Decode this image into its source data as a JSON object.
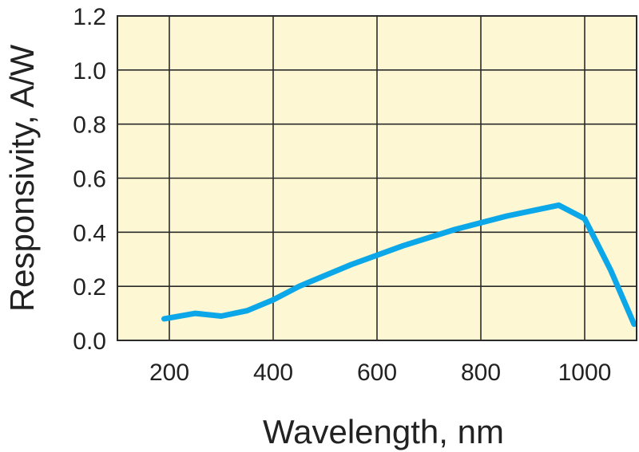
{
  "chart_data": {
    "type": "line",
    "xlabel": "Wavelength, nm",
    "ylabel": "Responsivity, A/W",
    "xlim": [
      100,
      1100
    ],
    "ylim": [
      0,
      1.2
    ],
    "x_ticks": [
      200,
      400,
      600,
      800,
      1000
    ],
    "x_tick_labels": [
      "200",
      "400",
      "600",
      "800",
      "1000"
    ],
    "y_ticks": [
      0,
      0.2,
      0.4,
      0.6,
      0.8,
      1.0,
      1.2
    ],
    "y_tick_labels": [
      "0.0",
      "0.2",
      "0.4",
      "0.6",
      "0.8",
      "1.0",
      "1.2"
    ],
    "grid": true,
    "colors": {
      "background": "#fdf8d3",
      "line": "#0ba7e8",
      "grid": "#2a2a2a"
    },
    "series": [
      {
        "x": [
          190,
          250,
          300,
          350,
          400,
          450,
          550,
          650,
          750,
          850,
          950,
          1000,
          1050,
          1095
        ],
        "y": [
          0.08,
          0.1,
          0.09,
          0.11,
          0.15,
          0.2,
          0.28,
          0.35,
          0.41,
          0.46,
          0.5,
          0.45,
          0.26,
          0.06
        ]
      }
    ]
  }
}
